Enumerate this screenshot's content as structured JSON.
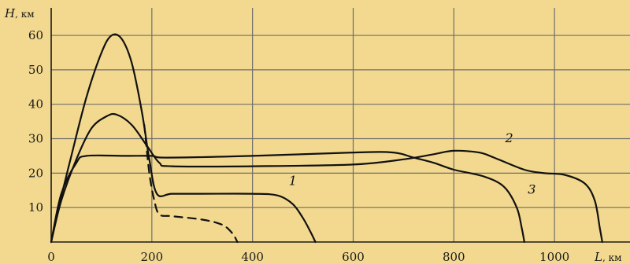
{
  "chart_data": {
    "type": "line",
    "title": "",
    "xlabel": {
      "symbol": "L",
      "unit": ", км"
    },
    "ylabel": {
      "symbol": "H",
      "unit": ", км"
    },
    "xlim": [
      0,
      1150
    ],
    "ylim": [
      0,
      68
    ],
    "grid": true,
    "x_ticks": [
      0,
      200,
      400,
      600,
      800,
      1000
    ],
    "y_ticks": [
      10,
      20,
      30,
      40,
      50,
      60
    ],
    "colors": {
      "background": "#f3d98f",
      "grid": "#6d6d6d",
      "line": "#111111"
    },
    "series": [
      {
        "name": "1",
        "style": "solid",
        "points": [
          [
            0,
            0
          ],
          [
            15,
            10
          ],
          [
            40,
            25
          ],
          [
            70,
            42
          ],
          [
            100,
            55
          ],
          [
            120,
            60
          ],
          [
            140,
            59
          ],
          [
            160,
            52
          ],
          [
            180,
            38
          ],
          [
            195,
            24
          ],
          [
            210,
            14
          ],
          [
            240,
            14
          ],
          [
            300,
            14
          ],
          [
            400,
            14
          ],
          [
            450,
            13.5
          ],
          [
            480,
            11
          ],
          [
            500,
            7
          ],
          [
            515,
            3
          ],
          [
            525,
            0
          ]
        ]
      },
      {
        "name": "",
        "style": "dashed",
        "points": [
          [
            185,
            34
          ],
          [
            195,
            20
          ],
          [
            205,
            12
          ],
          [
            215,
            8
          ],
          [
            240,
            7.5
          ],
          [
            300,
            6.5
          ],
          [
            340,
            5
          ],
          [
            360,
            2.5
          ],
          [
            370,
            0
          ]
        ]
      },
      {
        "name": "2",
        "style": "solid",
        "points": [
          [
            0,
            0
          ],
          [
            20,
            12
          ],
          [
            50,
            24
          ],
          [
            80,
            33
          ],
          [
            110,
            36.5
          ],
          [
            130,
            37
          ],
          [
            160,
            34
          ],
          [
            190,
            28
          ],
          [
            215,
            23
          ],
          [
            240,
            22
          ],
          [
            400,
            22
          ],
          [
            600,
            22.5
          ],
          [
            700,
            24
          ],
          [
            760,
            25.5
          ],
          [
            800,
            26.5
          ],
          [
            850,
            26
          ],
          [
            880,
            24.5
          ],
          [
            940,
            21
          ],
          [
            980,
            20
          ],
          [
            1020,
            19.5
          ],
          [
            1060,
            17
          ],
          [
            1080,
            12
          ],
          [
            1090,
            4
          ],
          [
            1095,
            0
          ]
        ]
      },
      {
        "name": "3",
        "style": "solid",
        "points": [
          [
            0,
            0
          ],
          [
            20,
            14
          ],
          [
            50,
            23
          ],
          [
            70,
            25
          ],
          [
            150,
            25
          ],
          [
            200,
            25
          ],
          [
            230,
            24.5
          ],
          [
            400,
            25
          ],
          [
            600,
            26
          ],
          [
            680,
            26
          ],
          [
            720,
            24.5
          ],
          [
            760,
            23
          ],
          [
            800,
            21
          ],
          [
            860,
            19
          ],
          [
            900,
            16
          ],
          [
            925,
            10
          ],
          [
            935,
            4
          ],
          [
            940,
            0
          ]
        ]
      }
    ],
    "series_labels": [
      {
        "series": "1",
        "text": "1",
        "at": [
          480,
          16.5
        ]
      },
      {
        "series": "2",
        "text": "2",
        "at": [
          910,
          29
        ]
      },
      {
        "series": "3",
        "text": "3",
        "at": [
          955,
          14
        ]
      }
    ]
  }
}
